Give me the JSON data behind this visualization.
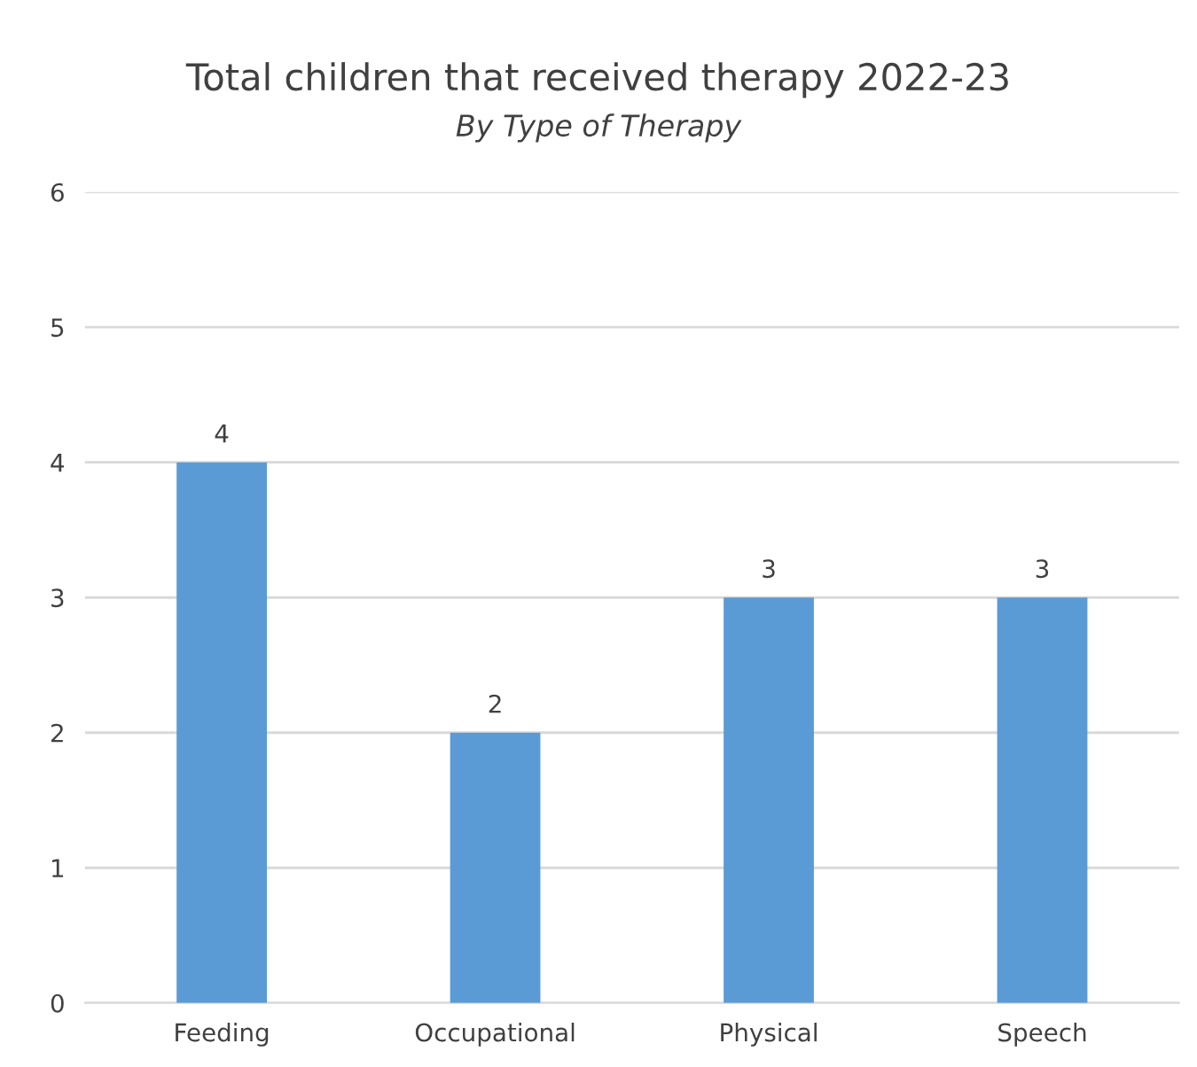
{
  "chart_data": {
    "type": "bar",
    "title": "Total children that received therapy 2022-23",
    "subtitle": "By Type of Therapy",
    "categories": [
      "Feeding",
      "Occupational",
      "Physical",
      "Speech"
    ],
    "values": [
      4,
      2,
      3,
      3
    ],
    "color": "#5b9bd5",
    "ylim": [
      0,
      6
    ],
    "yticks": [
      0,
      1,
      2,
      3,
      4,
      5,
      6
    ],
    "grid": "y",
    "data_labels": true
  }
}
